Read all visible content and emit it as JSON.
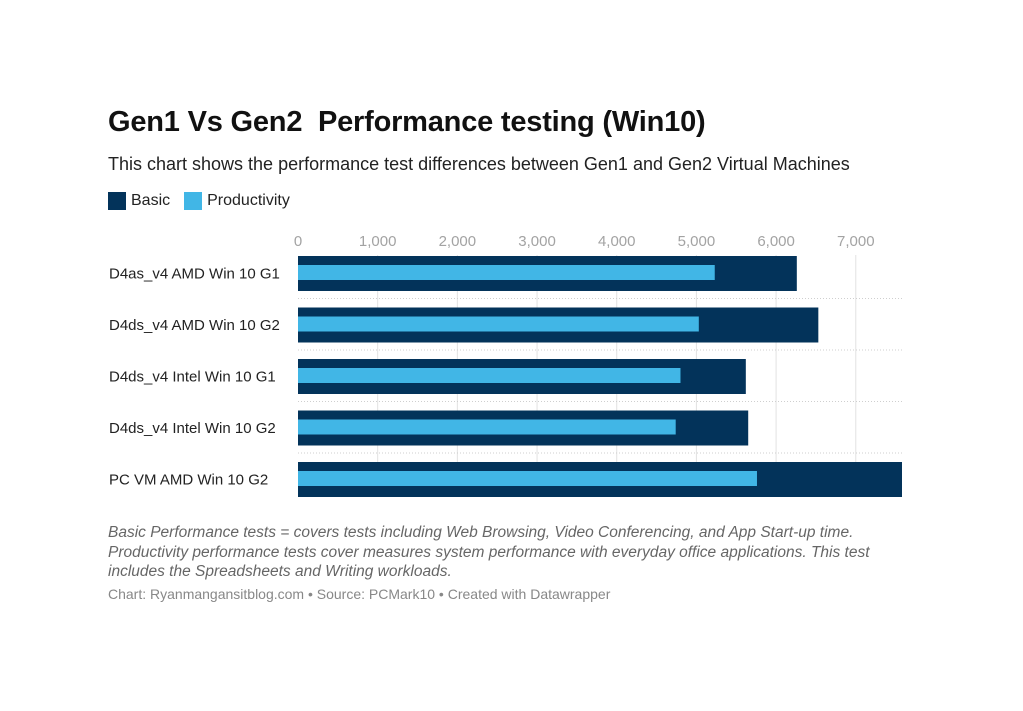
{
  "header": {
    "title": "Gen1 Vs Gen2  Performance testing (Win10)",
    "subtitle": "This chart shows the performance test differences between Gen1 and Gen2 Virtual Machines"
  },
  "legend": [
    {
      "label": "Basic",
      "color": "#03335a"
    },
    {
      "label": "Productivity",
      "color": "#41b6e6"
    }
  ],
  "chart_data": {
    "type": "bar",
    "orientation": "horizontal",
    "categories": [
      "D4as_v4 AMD Win 10 G1",
      "D4ds_v4 AMD Win 10 G2",
      "D4ds_v4 Intel Win 10 G1",
      "D4ds_v4 Intel Win 10 G2",
      "PC VM AMD Win 10 G2"
    ],
    "series": [
      {
        "name": "Basic",
        "color": "#03335a",
        "values": [
          6260,
          6530,
          5620,
          5650,
          7580
        ]
      },
      {
        "name": "Productivity",
        "color": "#41b6e6",
        "values": [
          5230,
          5030,
          4800,
          4740,
          5760
        ]
      }
    ],
    "xticks": [
      0,
      1000,
      2000,
      3000,
      4000,
      5000,
      6000,
      7000
    ],
    "xtick_labels": [
      "0",
      "1,000",
      "2,000",
      "3,000",
      "4,000",
      "5,000",
      "6,000",
      "7,000"
    ],
    "xlim": [
      0,
      7580
    ],
    "axis_position": "top",
    "grid": true,
    "legend_position": "top-left"
  },
  "notes": "Basic Performance tests = covers tests including Web Browsing, Video Conferencing, and App Start-up time. Productivity performance tests cover measures system performance with everyday office applications. This test includes the Spreadsheets and Writing workloads.",
  "footer": "Chart: Ryanmangansitblog.com • Source: PCMark10 • Created with Datawrapper"
}
